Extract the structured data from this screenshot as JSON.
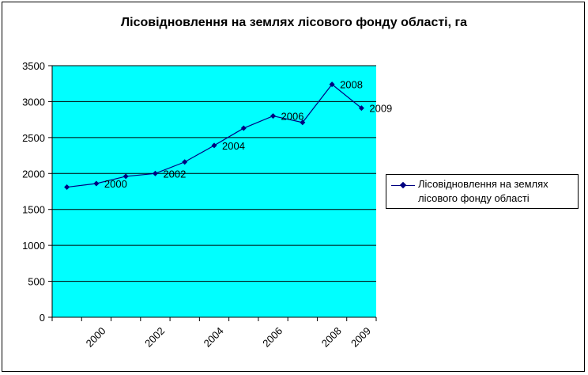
{
  "chart_data": {
    "type": "line",
    "title": "Лісовідновлення на землях лісового фонду області, га",
    "xlabel": "",
    "ylabel": "",
    "ylim": [
      0,
      3500
    ],
    "yticks": [
      0,
      500,
      1000,
      1500,
      2000,
      2500,
      3000,
      3500
    ],
    "categories": [
      "",
      "",
      "",
      "",
      "",
      "",
      "",
      "",
      "",
      "",
      ""
    ],
    "xtick_labels": [
      {
        "index": 1,
        "label": "2000"
      },
      {
        "index": 3,
        "label": "2002"
      },
      {
        "index": 5,
        "label": "2004"
      },
      {
        "index": 7,
        "label": "2006"
      },
      {
        "index": 9,
        "label": "2008"
      },
      {
        "index": 10,
        "label": "2009"
      }
    ],
    "series": [
      {
        "name": "Лісовідновлення  на землях лісового фонду області",
        "values": [
          1810,
          1860,
          1960,
          2000,
          2160,
          2390,
          2630,
          2800,
          2710,
          3240,
          2910
        ]
      }
    ],
    "data_labels": [
      {
        "index": 1,
        "label": "2000"
      },
      {
        "index": 3,
        "label": "2002"
      },
      {
        "index": 5,
        "label": "2004"
      },
      {
        "index": 7,
        "label": "2006"
      },
      {
        "index": 9,
        "label": "2008"
      },
      {
        "index": 10,
        "label": "2009"
      }
    ],
    "grid": true,
    "legend_position": "right",
    "plot_background": "#00FFFF",
    "line_color": "#000080"
  }
}
